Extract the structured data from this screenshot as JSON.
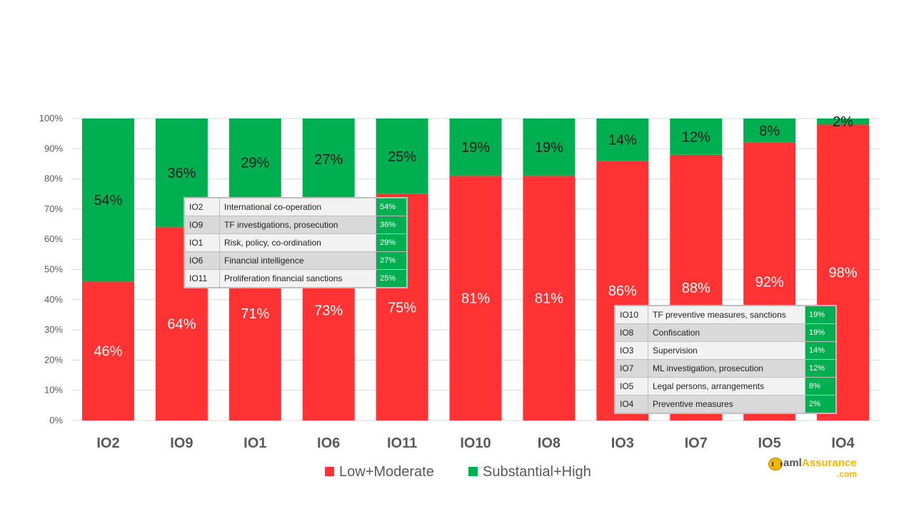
{
  "chart_data": {
    "type": "bar",
    "stacked": true,
    "percent_stacked": true,
    "categories": [
      "IO2",
      "IO9",
      "IO1",
      "IO6",
      "IO11",
      "IO10",
      "IO8",
      "IO3",
      "IO7",
      "IO5",
      "IO4"
    ],
    "series": [
      {
        "name": "Low+Moderate",
        "color": "#ff3333",
        "label_color": "#ffffff",
        "values": [
          46,
          64,
          71,
          73,
          75,
          81,
          81,
          86,
          88,
          92,
          98
        ],
        "labels": [
          "46%",
          "64%",
          "71%",
          "73%",
          "75%",
          "81%",
          "81%",
          "86%",
          "88%",
          "92%",
          "98%"
        ]
      },
      {
        "name": "Substantial+High",
        "color": "#00b050",
        "label_color": "#1a1a1a",
        "values": [
          54,
          36,
          29,
          27,
          25,
          19,
          19,
          14,
          12,
          8,
          2
        ],
        "labels": [
          "54%",
          "36%",
          "29%",
          "27%",
          "25%",
          "19%",
          "19%",
          "14%",
          "12%",
          "8%",
          "2%"
        ]
      }
    ],
    "ylim": [
      0,
      100
    ],
    "yticks": [
      "0%",
      "10%",
      "20%",
      "30%",
      "40%",
      "50%",
      "60%",
      "70%",
      "80%",
      "90%",
      "100%"
    ],
    "grid": true,
    "legend": "bottom",
    "title": "",
    "xlabel": "",
    "ylabel": ""
  },
  "tables": {
    "left": [
      {
        "code": "IO2",
        "name": "International co-operation",
        "value": "54%"
      },
      {
        "code": "IO9",
        "name": "TF investigations, prosecution",
        "value": "36%"
      },
      {
        "code": "IO1",
        "name": "Risk, policy, co-ordination",
        "value": "29%"
      },
      {
        "code": "IO6",
        "name": "Financial intelligence",
        "value": "27%"
      },
      {
        "code": "IO11",
        "name": "Proliferation financial sanctions",
        "value": "25%"
      }
    ],
    "right": [
      {
        "code": "IO10",
        "name": "TF preventive measures, sanctions",
        "value": "19%"
      },
      {
        "code": "IO8",
        "name": "Confiscation",
        "value": "19%"
      },
      {
        "code": "IO3",
        "name": "Supervision",
        "value": "14%"
      },
      {
        "code": "IO7",
        "name": "ML investigation, prosecution",
        "value": "12%"
      },
      {
        "code": "IO5",
        "name": "Legal persons, arrangements",
        "value": "8%"
      },
      {
        "code": "IO4",
        "name": "Preventive measures",
        "value": "2%"
      }
    ]
  },
  "logo": {
    "brand_prefix": "aml",
    "brand_suffix": "Assurance",
    "domain": ".com"
  }
}
